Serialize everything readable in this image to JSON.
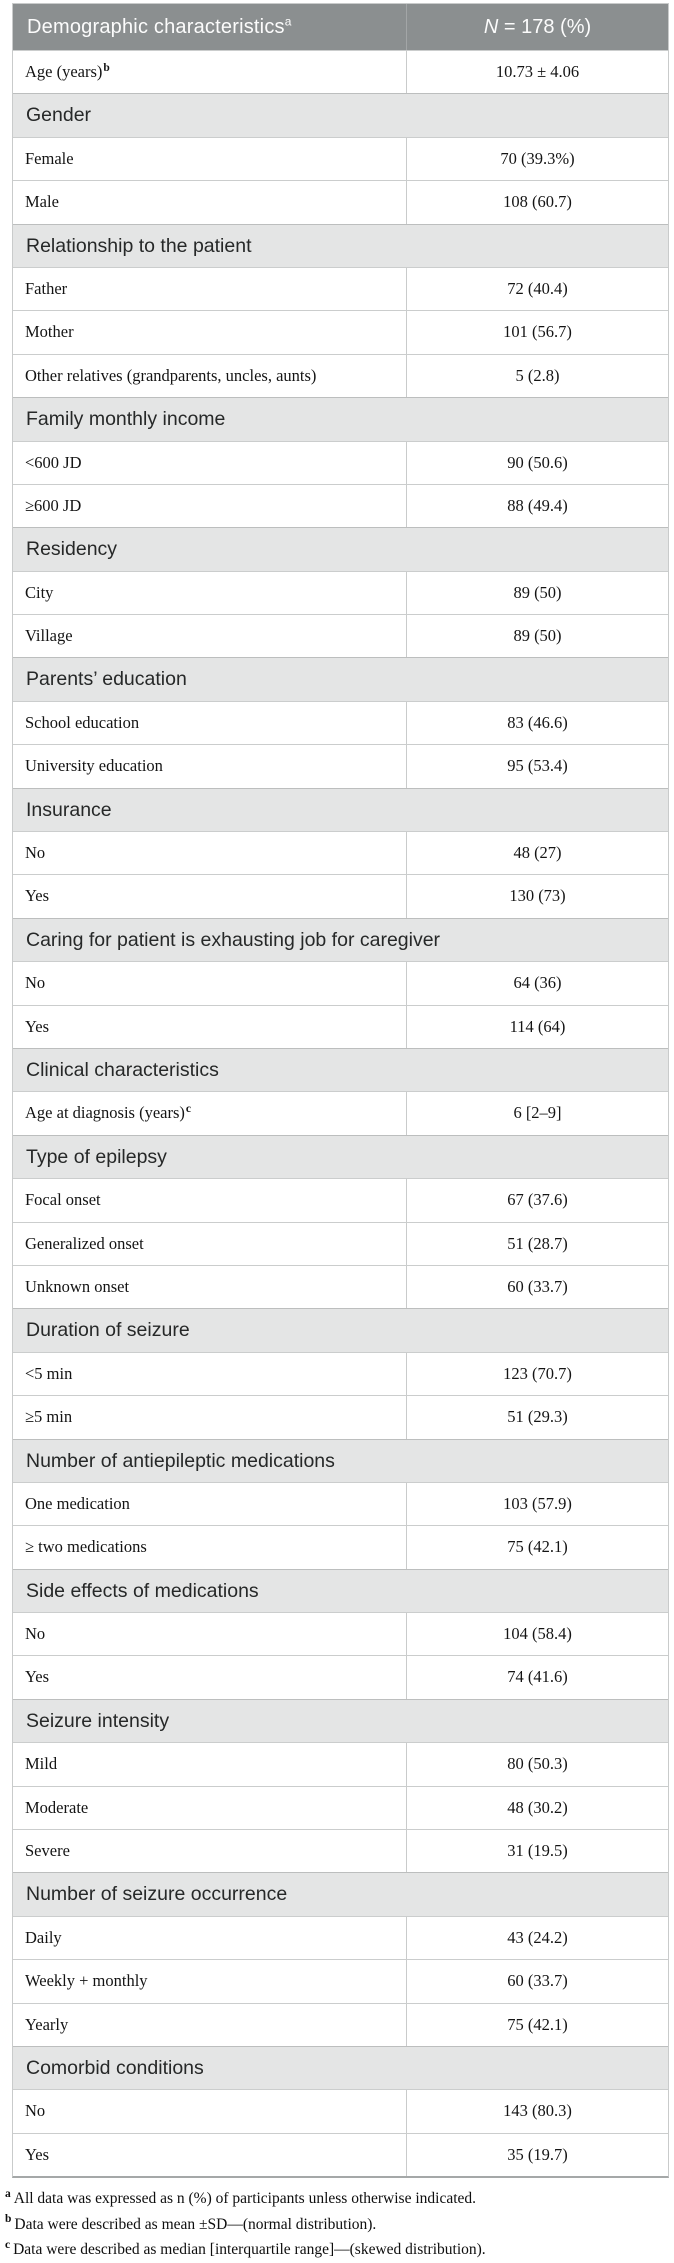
{
  "table": {
    "header": {
      "col1": "Demographic characteristics",
      "col1_sup": "a",
      "col2_italic": "N",
      "col2_rest": " = 178 (%)"
    },
    "colors": {
      "header_bg": "#8b8f90",
      "header_text": "#fcfcfc",
      "section_bg": "#e4e5e5",
      "border": "#c9cbcb"
    },
    "rows": [
      {
        "type": "data",
        "label": "Age (years)",
        "sup": "b",
        "value": "10.73 ± 4.06"
      },
      {
        "type": "section",
        "label": "Gender"
      },
      {
        "type": "data",
        "label": "Female",
        "value": "70 (39.3%)"
      },
      {
        "type": "data",
        "label": "Male",
        "value": "108 (60.7)"
      },
      {
        "type": "section",
        "label": "Relationship to the patient"
      },
      {
        "type": "data",
        "label": "Father",
        "value": "72 (40.4)"
      },
      {
        "type": "data",
        "label": "Mother",
        "value": "101 (56.7)"
      },
      {
        "type": "data",
        "label": "Other relatives (grandparents, uncles, aunts)",
        "value": "5 (2.8)"
      },
      {
        "type": "section",
        "label": "Family monthly income"
      },
      {
        "type": "data",
        "label": "<600 JD",
        "value": "90 (50.6)"
      },
      {
        "type": "data",
        "label": "≥600 JD",
        "value": "88 (49.4)"
      },
      {
        "type": "section",
        "label": "Residency"
      },
      {
        "type": "data",
        "label": "City",
        "value": "89 (50)"
      },
      {
        "type": "data",
        "label": "Village",
        "value": "89 (50)"
      },
      {
        "type": "section",
        "label": "Parents’ education"
      },
      {
        "type": "data",
        "label": "School education",
        "value": "83 (46.6)"
      },
      {
        "type": "data",
        "label": "University education",
        "value": "95 (53.4)"
      },
      {
        "type": "section",
        "label": "Insurance"
      },
      {
        "type": "data",
        "label": "No",
        "value": "48 (27)"
      },
      {
        "type": "data",
        "label": "Yes",
        "value": "130 (73)"
      },
      {
        "type": "section",
        "label": "Caring for patient is exhausting job for caregiver"
      },
      {
        "type": "data",
        "label": "No",
        "value": "64 (36)"
      },
      {
        "type": "data",
        "label": "Yes",
        "value": "114 (64)"
      },
      {
        "type": "section",
        "label": "Clinical characteristics"
      },
      {
        "type": "data",
        "label": "Age at diagnosis (years)",
        "sup": "c",
        "value": "6 [2–9]"
      },
      {
        "type": "section",
        "label": "Type of epilepsy"
      },
      {
        "type": "data",
        "label": "Focal onset",
        "value": "67 (37.6)"
      },
      {
        "type": "data",
        "label": "Generalized onset",
        "value": "51 (28.7)"
      },
      {
        "type": "data",
        "label": "Unknown onset",
        "value": "60 (33.7)"
      },
      {
        "type": "section",
        "label": "Duration of seizure"
      },
      {
        "type": "data",
        "label": "<5 min",
        "value": "123 (70.7)"
      },
      {
        "type": "data",
        "label": "≥5 min",
        "value": "51 (29.3)"
      },
      {
        "type": "section",
        "label": "Number of antiepileptic medications"
      },
      {
        "type": "data",
        "label": "One medication",
        "value": "103 (57.9)"
      },
      {
        "type": "data",
        "label": "≥ two medications",
        "value": "75 (42.1)"
      },
      {
        "type": "section",
        "label": "Side effects of medications"
      },
      {
        "type": "data",
        "label": "No",
        "value": "104 (58.4)"
      },
      {
        "type": "data",
        "label": "Yes",
        "value": "74 (41.6)"
      },
      {
        "type": "section",
        "label": "Seizure intensity"
      },
      {
        "type": "data",
        "label": "Mild",
        "value": "80 (50.3)"
      },
      {
        "type": "data",
        "label": "Moderate",
        "value": "48 (30.2)"
      },
      {
        "type": "data",
        "label": "Severe",
        "value": "31 (19.5)"
      },
      {
        "type": "section",
        "label": "Number of seizure occurrence"
      },
      {
        "type": "data",
        "label": "Daily",
        "value": "43 (24.2)"
      },
      {
        "type": "data",
        "label": "Weekly + monthly",
        "value": "60 (33.7)"
      },
      {
        "type": "data",
        "label": "Yearly",
        "value": "75 (42.1)"
      },
      {
        "type": "section",
        "label": "Comorbid conditions"
      },
      {
        "type": "data",
        "label": "No",
        "value": "143 (80.3)"
      },
      {
        "type": "data",
        "label": "Yes",
        "value": "35 (19.7)"
      }
    ],
    "footnotes": [
      {
        "sup": "a",
        "text": "All data was expressed as n (%) of participants unless otherwise indicated."
      },
      {
        "sup": "b",
        "text": "Data were described as mean ±SD—(normal distribution)."
      },
      {
        "sup": "c",
        "text": "Data were described as median [interquartile range]—(skewed distribution)."
      }
    ]
  }
}
